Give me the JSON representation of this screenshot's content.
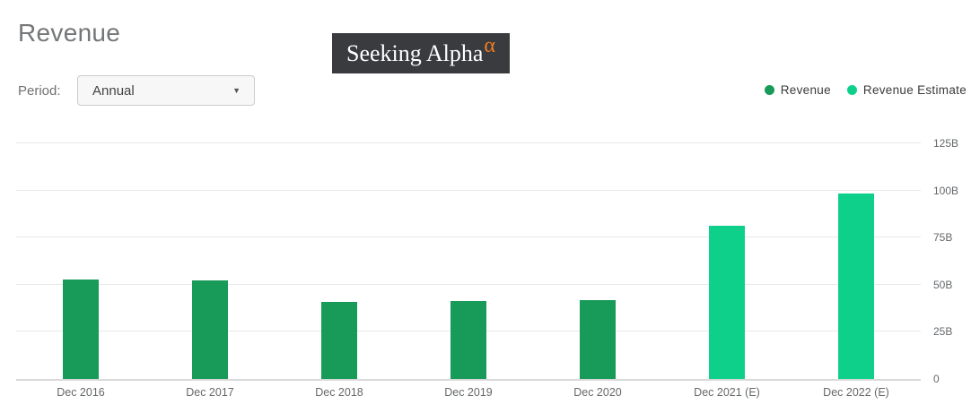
{
  "header": {
    "title": "Revenue"
  },
  "logo": {
    "text": "Seeking Alpha",
    "alpha_glyph": "α",
    "background": "#393b3e",
    "alpha_color": "#f47b20"
  },
  "controls": {
    "period_label": "Period:",
    "period_value": "Annual",
    "dropdown_arrow_glyph": "▼"
  },
  "legend": {
    "items": [
      {
        "label": "Revenue",
        "color": "#189a58"
      },
      {
        "label": "Revenue Estimate",
        "color": "#0ed08b"
      }
    ]
  },
  "chart_data": {
    "type": "bar",
    "title": "Revenue",
    "categories": [
      "Dec 2016",
      "Dec 2017",
      "Dec 2018",
      "Dec 2019",
      "Dec 2020",
      "Dec 2021 (E)",
      "Dec 2022 (E)"
    ],
    "series": [
      {
        "name": "Revenue",
        "color": "#189a58",
        "values": [
          52.8,
          52.5,
          40.8,
          41.2,
          41.9,
          null,
          null
        ]
      },
      {
        "name": "Revenue Estimate",
        "color": "#0ed08b",
        "values": [
          null,
          null,
          null,
          null,
          null,
          81.5,
          98.5
        ]
      }
    ],
    "value_unit": "B",
    "ylim": [
      0,
      135
    ],
    "yticks": [
      0,
      25,
      50,
      75,
      100,
      125
    ],
    "ytick_labels": [
      "0",
      "25B",
      "50B",
      "75B",
      "100B",
      "125B"
    ],
    "ytick_side": "right",
    "grid": true,
    "legend_position": "top-right",
    "colors": {
      "grid": "#e8e8e8",
      "axis": "#d9d9d9"
    }
  }
}
